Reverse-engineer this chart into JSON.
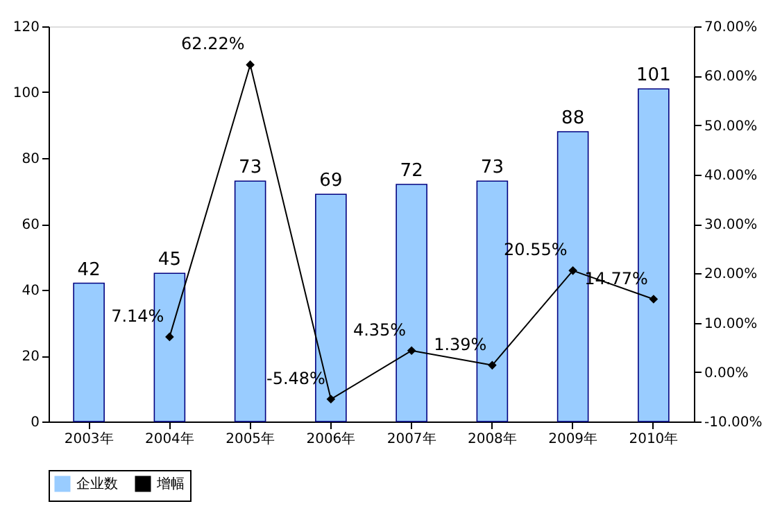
{
  "chart_data": {
    "type": "bar",
    "categories": [
      "2003年",
      "2004年",
      "2005年",
      "2006年",
      "2007年",
      "2008年",
      "2009年",
      "2010年"
    ],
    "series": [
      {
        "name": "企业数",
        "color": "#99ccff",
        "values": [
          42,
          45,
          73,
          69,
          72,
          73,
          88,
          101
        ],
        "value_labels": [
          "42",
          "45",
          "73",
          "69",
          "72",
          "73",
          "88",
          "101"
        ]
      },
      {
        "name": "增幅",
        "type": "line",
        "axis": "y2",
        "color": "#000000",
        "marker": "diamond",
        "values": [
          null,
          7.14,
          62.22,
          -5.48,
          4.35,
          1.39,
          20.55,
          14.77
        ],
        "value_labels": [
          null,
          "7.14%",
          "62.22%",
          "-5.48%",
          "4.35%",
          "1.39%",
          "20.55%",
          "14.77%"
        ]
      }
    ],
    "ylim": [
      0,
      120
    ],
    "yticks": [
      0,
      20,
      40,
      60,
      80,
      100,
      120
    ],
    "y2lim": [
      -10,
      70
    ],
    "y2ticks": [
      {
        "value": -10,
        "label": "-10.00%"
      },
      {
        "value": 0,
        "label": "0.00%"
      },
      {
        "value": 10,
        "label": "10.00%"
      },
      {
        "value": 20,
        "label": "20.00%"
      },
      {
        "value": 30,
        "label": "30.00%"
      },
      {
        "value": 40,
        "label": "40.00%"
      },
      {
        "value": 50,
        "label": "50.00%"
      },
      {
        "value": 60,
        "label": "60.00%"
      },
      {
        "value": 70,
        "label": "70.00%"
      }
    ],
    "grid": false,
    "legend": "bottom"
  }
}
